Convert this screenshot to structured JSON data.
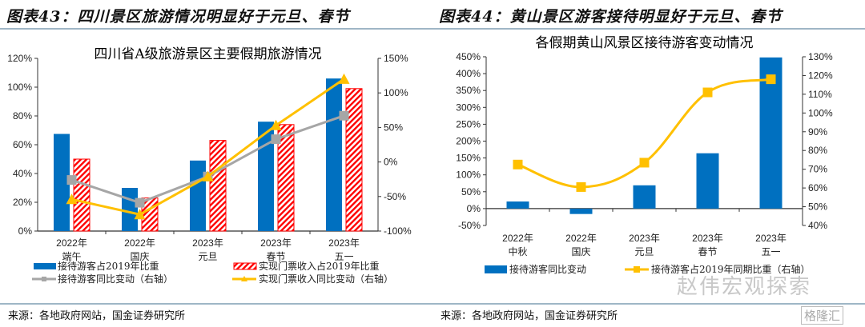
{
  "panel_left": {
    "figure_title": "图表43：四川景区旅游情况明显好于元旦、春节",
    "source": "来源：各地政府网站，国金证券研究所"
  },
  "panel_right": {
    "figure_title": "图表44：黄山景区游客接待明显好于元旦、春节",
    "source": "来源：各地政府网站，国金证券研究所"
  },
  "watermark": {
    "text": "赵伟宏观探索",
    "badge": "格隆汇"
  },
  "colors": {
    "blue": "#0070c0",
    "red": "#ff0000",
    "gray": "#a6a6a6",
    "yellow": "#ffc000"
  },
  "chart_data": [
    {
      "type": "bar",
      "title": "四川省A级旅游景区主要假期旅游情况",
      "categories": [
        [
          "2022年",
          "端午"
        ],
        [
          "2022年",
          "国庆"
        ],
        [
          "2023年",
          "元旦"
        ],
        [
          "2023年",
          "春节"
        ],
        [
          "2023年",
          "五一"
        ]
      ],
      "y_left": {
        "range": [
          0,
          120
        ],
        "ticks": [
          0,
          20,
          40,
          60,
          80,
          100,
          120
        ],
        "tick_labels": [
          "0%",
          "20%",
          "40%",
          "60%",
          "80%",
          "100%",
          "120%"
        ]
      },
      "y_right": {
        "range": [
          -100,
          150
        ],
        "ticks": [
          -100,
          -50,
          0,
          50,
          100,
          150
        ],
        "tick_labels": [
          "-100%",
          "-50%",
          "0%",
          "50%",
          "100%",
          "150%"
        ]
      },
      "series": [
        {
          "name": "接待游客占2019年比重",
          "type": "bar",
          "axis": "left",
          "color": "#0070c0",
          "values": [
            67.5,
            30,
            49,
            76,
            106
          ]
        },
        {
          "name": "实现门票收入占2019年比重",
          "type": "bar-hatched",
          "axis": "left",
          "color": "#ff0000",
          "values": [
            50,
            23,
            63,
            74,
            99
          ]
        },
        {
          "name": "接待游客同比变动（右轴）",
          "type": "line",
          "marker": "square",
          "axis": "right",
          "color": "#a6a6a6",
          "values": [
            -26,
            -59,
            -21,
            33,
            67
          ]
        },
        {
          "name": "实现门票收入同比变动（右轴）",
          "type": "line",
          "marker": "triangle",
          "axis": "right",
          "color": "#ffc000",
          "values": [
            -54,
            -76,
            -21,
            53,
            120
          ]
        }
      ],
      "legend": "bottom"
    },
    {
      "type": "bar",
      "title": "各假期黄山风景区接待游客变动情况",
      "categories": [
        [
          "2022年",
          "中秋"
        ],
        [
          "2022年",
          "国庆"
        ],
        [
          "2023年",
          "元旦"
        ],
        [
          "2023年",
          "春节"
        ],
        [
          "2023年",
          "五一"
        ]
      ],
      "y_left": {
        "range": [
          -50,
          450
        ],
        "ticks": [
          -50,
          0,
          50,
          100,
          150,
          200,
          250,
          300,
          350,
          400,
          450
        ],
        "tick_labels": [
          "-50%",
          "0%",
          "50%",
          "100%",
          "150%",
          "200%",
          "250%",
          "300%",
          "350%",
          "400%",
          "450%"
        ]
      },
      "y_right": {
        "range": [
          40,
          130
        ],
        "ticks": [
          40,
          50,
          60,
          70,
          80,
          90,
          100,
          110,
          120,
          130
        ],
        "tick_labels": [
          "40%",
          "50%",
          "60%",
          "70%",
          "80%",
          "90%",
          "100%",
          "110%",
          "120%",
          "130%"
        ]
      },
      "series": [
        {
          "name": "接待游客同比变动",
          "type": "bar",
          "axis": "left",
          "color": "#0070c0",
          "values": [
            21,
            -16,
            69,
            164,
            448
          ]
        },
        {
          "name": "接待游客占2019年同期比重（右轴）",
          "type": "line-smooth",
          "marker": "square",
          "axis": "right",
          "color": "#ffc000",
          "values": [
            72.5,
            60.5,
            73.5,
            111,
            118
          ]
        }
      ],
      "legend": "bottom"
    }
  ]
}
